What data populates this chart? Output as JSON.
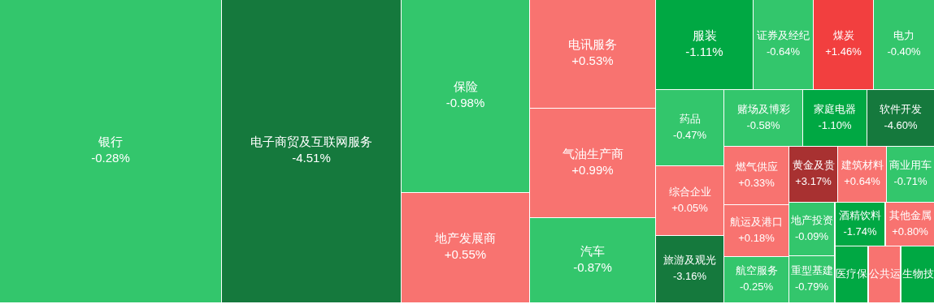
{
  "chart_data": {
    "type": "other",
    "categories": [
      "银行",
      "电子商贸及互联网服务",
      "保险",
      "地产发展商",
      "电讯服务",
      "气油生产商",
      "汽车",
      "服装",
      "证券及经纪",
      "煤炭",
      "电力",
      "药品",
      "赌场及博彩",
      "家庭电器",
      "软件开发",
      "综合企业",
      "旅游及观光",
      "燃气供应",
      "航运及港口",
      "航空服务",
      "黄金及贵",
      "建筑材料",
      "商业用车",
      "地产投资",
      "酒精饮料",
      "其他金属",
      "重型基建",
      "医疗保",
      "公共运",
      "生物技"
    ],
    "values": [
      -0.28,
      -4.51,
      -0.98,
      0.55,
      0.53,
      0.99,
      -0.87,
      -1.11,
      -0.64,
      1.46,
      -0.4,
      -0.47,
      -0.58,
      -1.1,
      -4.6,
      0.05,
      -3.16,
      0.33,
      0.18,
      -0.25,
      3.17,
      0.64,
      -0.71,
      -0.09,
      -1.74,
      0.8,
      -0.79,
      null,
      null,
      null
    ],
    "value_labels": [
      "-0.28%",
      "-4.51%",
      "-0.98%",
      "+0.55%",
      "+0.53%",
      "+0.99%",
      "-0.87%",
      "-1.11%",
      "-0.64%",
      "+1.46%",
      "-0.40%",
      "-0.47%",
      "-0.58%",
      "-1.10%",
      "-4.60%",
      "+0.05%",
      "-3.16%",
      "+0.33%",
      "+0.18%",
      "-0.25%",
      "+3.17%",
      "+0.64%",
      "-0.71%",
      "-0.09%",
      "-1.74%",
      "+0.80%",
      "-0.79%",
      null,
      null,
      null
    ],
    "colors": [
      "#33c66c",
      "#15793d",
      "#33c66c",
      "#f87370",
      "#f87370",
      "#f87370",
      "#33c66c",
      "#00a843",
      "#33c66c",
      "#f23f3f",
      "#33c66c",
      "#33c66c",
      "#33c66c",
      "#00a843",
      "#15793d",
      "#f87370",
      "#15793d",
      "#f87370",
      "#f87370",
      "#33c66c",
      "#a83131",
      "#f87370",
      "#33c66c",
      "#33c66c",
      "#00a843",
      "#f87370",
      "#33c66c",
      "#00a843",
      "#f87370",
      "#00a843"
    ]
  }
}
